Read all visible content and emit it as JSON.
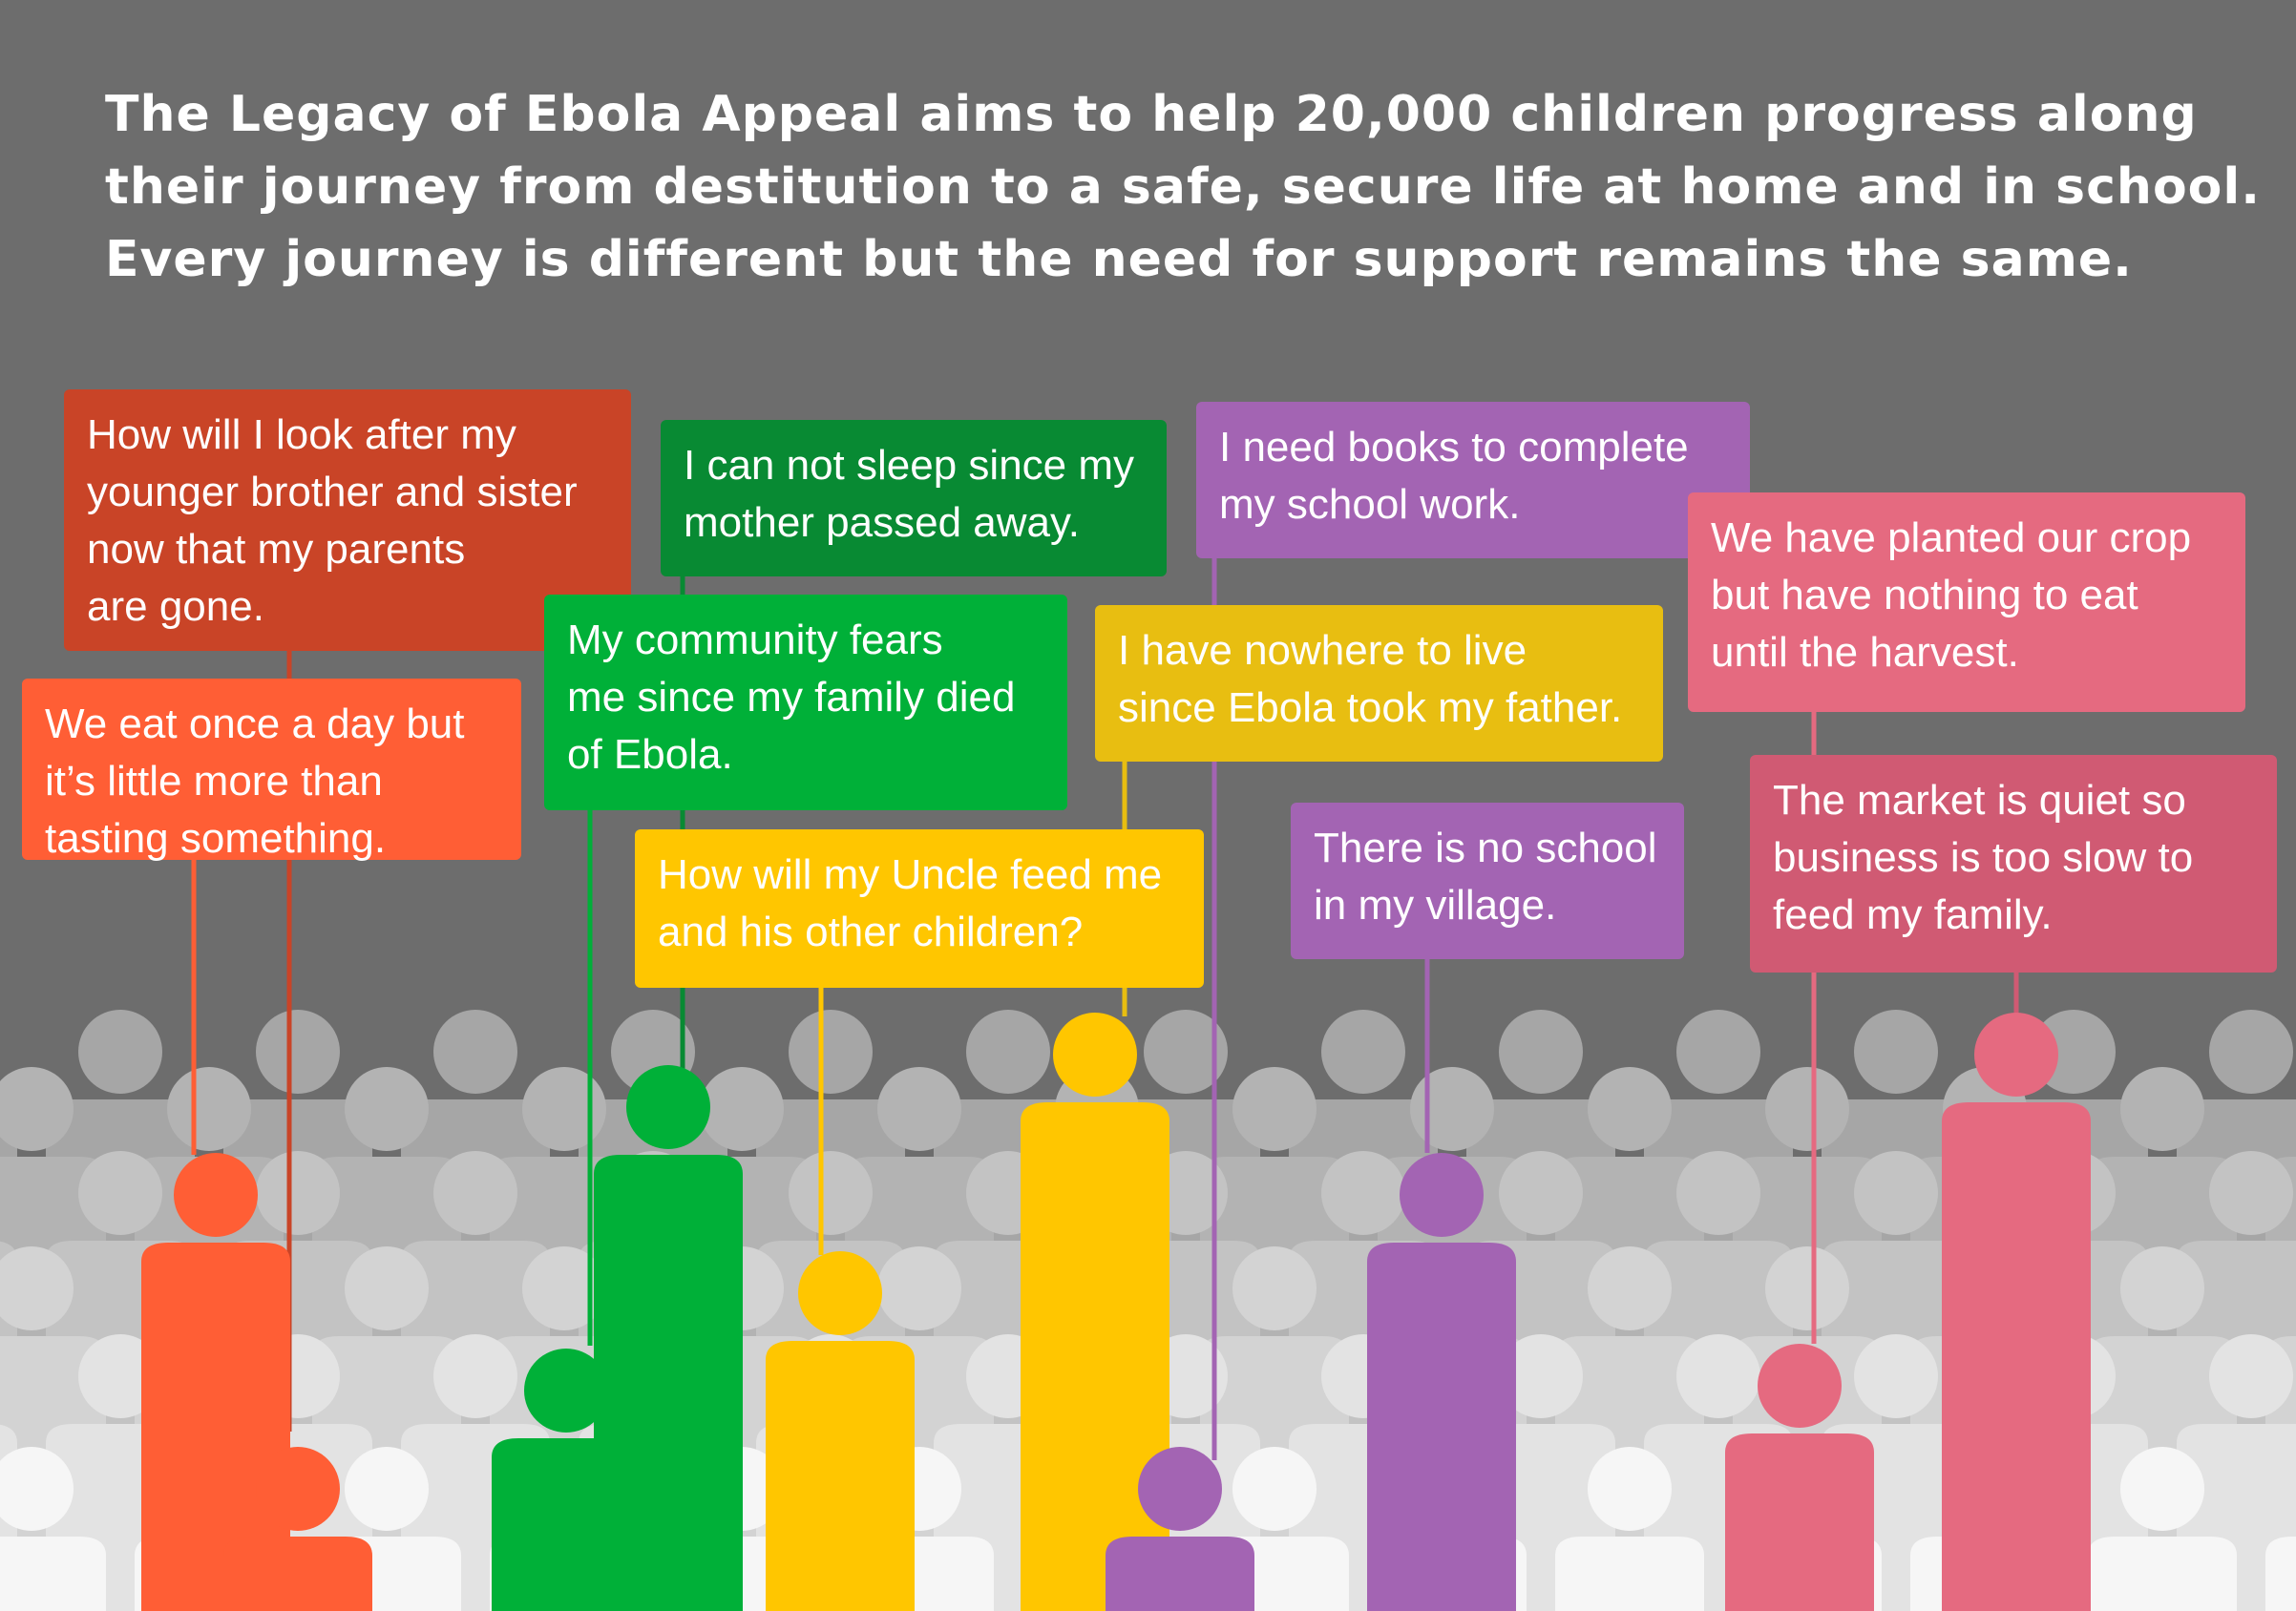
{
  "headline": [
    "The Legacy of Ebola Appeal aims to help 20,000 children progress along",
    "their journey from destitution to a safe, secure life at home and in school.",
    "Every journey is different but the need for support remains the same."
  ],
  "colors": {
    "background": "#6d6d6d",
    "crowd_row_tones": [
      "#a6a6a6",
      "#b3b3b3",
      "#c3c3c3",
      "#d3d3d3",
      "#e3e3e3",
      "#f6f6f6"
    ],
    "orange": "#ff5e35",
    "rust": "#c94427",
    "green": "#00b038",
    "dark_green": "#088a33",
    "yellow": "#ffc600",
    "mustard": "#e8be11",
    "purple": "#a364b3",
    "pink": "#e56a80",
    "dark_pink": "#d05a73"
  },
  "quotes": [
    {
      "id": "look-after-siblings",
      "color": "rust",
      "lines": [
        "How will I look after my",
        "younger brother and sister",
        "now that my parents",
        "are gone."
      ]
    },
    {
      "id": "eat-once-a-day",
      "color": "orange",
      "lines": [
        "We eat once a day but",
        "it’s little more than",
        "tasting something."
      ]
    },
    {
      "id": "cannot-sleep",
      "color": "dark_green",
      "lines": [
        "I can not sleep since my",
        "mother passed away."
      ]
    },
    {
      "id": "community-fears",
      "color": "green",
      "lines": [
        "My community fears",
        "me since my family died",
        "of Ebola."
      ]
    },
    {
      "id": "uncle-feed",
      "color": "yellow",
      "lines": [
        "How will my Uncle feed me",
        "and his other children?"
      ]
    },
    {
      "id": "nowhere-to-live",
      "color": "mustard",
      "lines": [
        "I have nowhere to live",
        "since Ebola took my father."
      ]
    },
    {
      "id": "need-books",
      "color": "purple",
      "lines": [
        "I need books to complete",
        "my school work."
      ]
    },
    {
      "id": "no-school",
      "color": "purple",
      "lines": [
        "There is no school",
        "in my village."
      ]
    },
    {
      "id": "planted-crop",
      "color": "pink",
      "lines": [
        "We have planted our crop",
        "but have nothing to eat",
        "until the harvest."
      ]
    },
    {
      "id": "market-quiet",
      "color": "dark_pink",
      "lines": [
        "The market is quiet so",
        "business is too slow to",
        "feed my family."
      ]
    }
  ]
}
